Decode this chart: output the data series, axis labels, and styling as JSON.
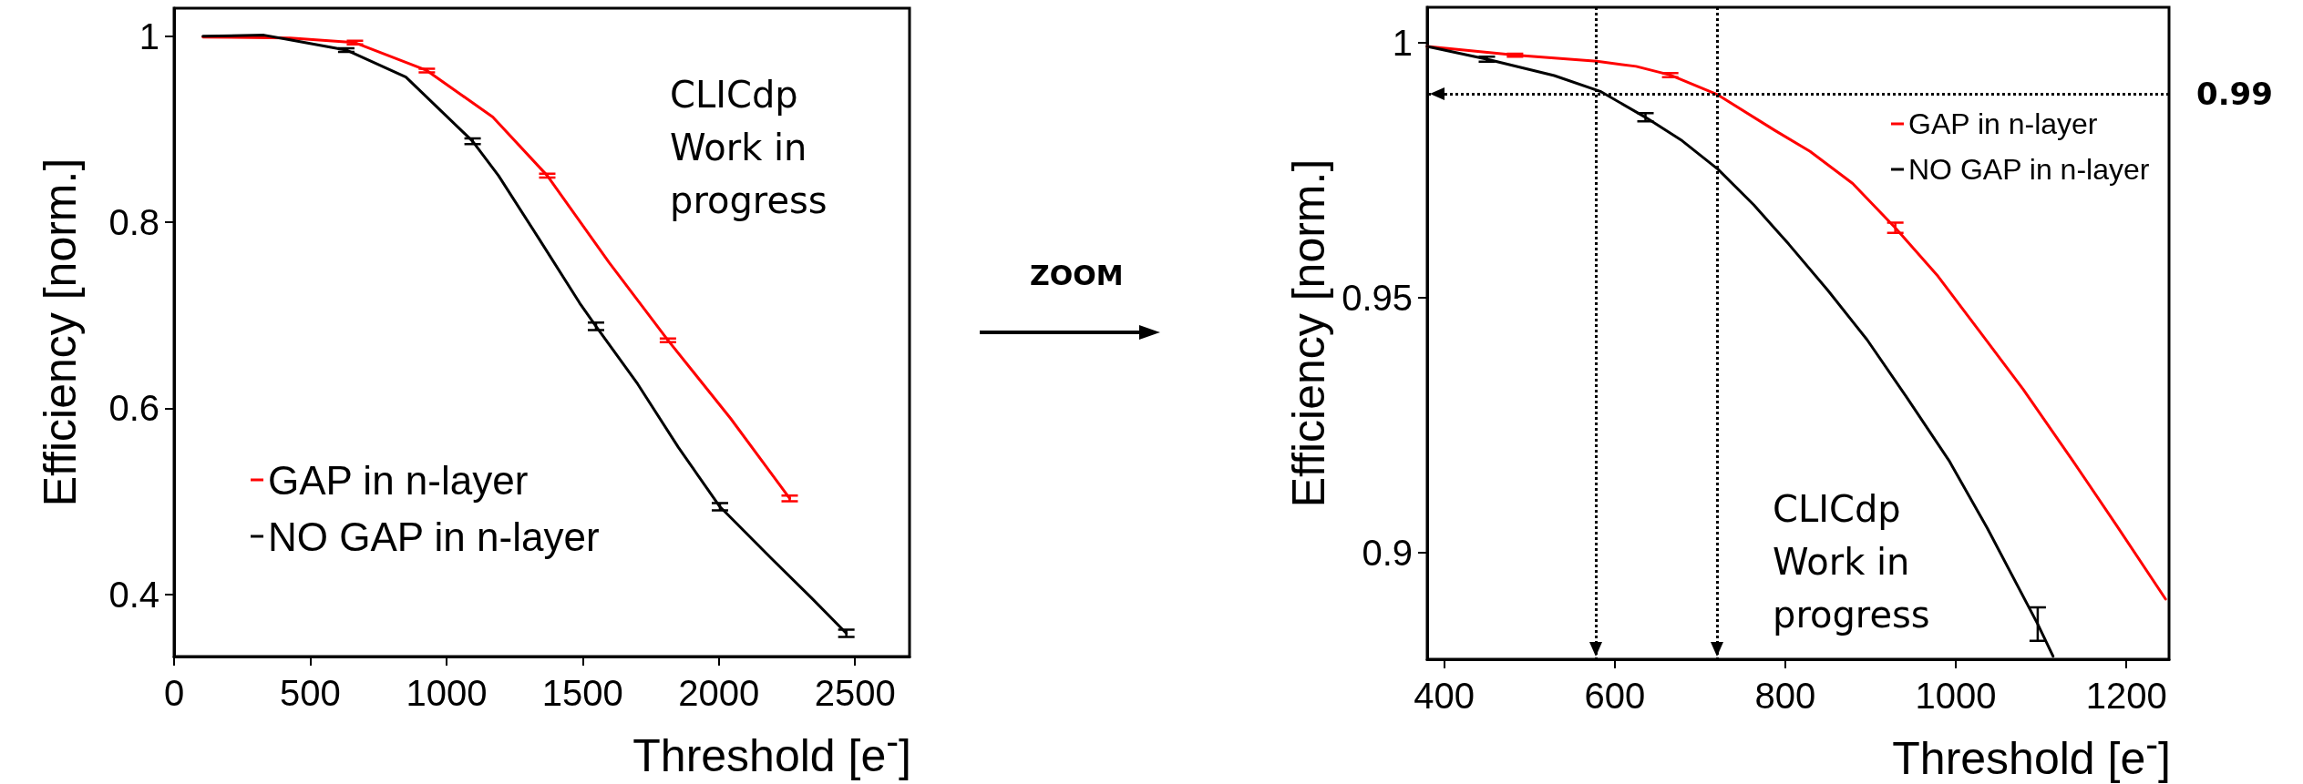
{
  "chart_data": [
    {
      "type": "line",
      "xlabel": "Threshold [e$^{-}$]",
      "ylabel": "Efficiency [norm.]",
      "xlim": [
        0,
        2700
      ],
      "xticks": [
        0,
        500,
        1000,
        1500,
        2000,
        2500
      ],
      "ylim": [
        0.333,
        1.03
      ],
      "yticks": [
        0.4,
        0.6,
        0.8,
        1
      ],
      "grid": false,
      "legend": "bottom left",
      "marker": "none",
      "line_style": "solid",
      "annotations": [
        "CLICdp\nWork in\nprogress"
      ],
      "series": [
        {
          "name": "GAP in n-layer",
          "color": "#ff0000",
          "x": [
            106,
            426,
            664,
            928,
            1170,
            1370,
            1596,
            1813,
            2043,
            2260
          ],
          "values": [
            0.999,
            0.998,
            0.993,
            0.963,
            0.913,
            0.85,
            0.757,
            0.673,
            0.589,
            0.503
          ],
          "errors": [
            null,
            null,
            0.002,
            0.002,
            null,
            0.002,
            null,
            0.002,
            null,
            0.003
          ]
        },
        {
          "name": "NO GAP in n-layer",
          "color": "#000000",
          "x": [
            106,
            330,
            426,
            632,
            851,
            1096,
            1191,
            1340,
            1489,
            1549,
            1702,
            1851,
            2004,
            2191,
            2340,
            2468
          ],
          "values": [
            1.0,
            1.001,
            0.996,
            0.985,
            0.956,
            0.887,
            0.85,
            0.782,
            0.713,
            0.688,
            0.626,
            0.558,
            0.494,
            0.439,
            0.396,
            0.358
          ],
          "errors": [
            null,
            null,
            null,
            0.002,
            null,
            0.003,
            null,
            null,
            null,
            0.004,
            null,
            null,
            0.004,
            null,
            null,
            0.004
          ]
        }
      ]
    },
    {
      "type": "line",
      "xlabel": "Threshold [e$^{-}$]",
      "ylabel": "Efficiency [norm.]",
      "xlim": [
        380,
        1250
      ],
      "xticks": [
        400,
        600,
        800,
        1000,
        1200
      ],
      "ylim": [
        0.879,
        1.007
      ],
      "yticks": [
        0.9,
        0.95,
        1
      ],
      "grid": false,
      "legend": "top right",
      "marker": "none",
      "line_style": "solid",
      "annotations": [
        "ZOOM",
        "CLICdp\nWork in\nprogress"
      ],
      "ref_lines": [
        {
          "axis": "y",
          "value": 0.99,
          "label": "0.99",
          "color": "#000000",
          "line_style": "dotted"
        },
        {
          "axis": "x",
          "value": 578,
          "label": null,
          "color": "#000000",
          "line_style": "dotted"
        },
        {
          "axis": "x",
          "value": 720,
          "label": null,
          "color": "#000000",
          "line_style": "dotted"
        }
      ],
      "series": [
        {
          "name": "GAP in n-layer",
          "color": "#ff0000",
          "x": [
            380,
            483,
            579,
            625,
            665,
            721,
            788,
            829,
            879,
            929,
            979,
            1029,
            1079,
            1137,
            1188,
            1246
          ],
          "values": [
            0.9993,
            0.9976,
            0.9964,
            0.9954,
            0.9937,
            0.9898,
            0.9828,
            0.9787,
            0.9724,
            0.9637,
            0.9542,
            0.9431,
            0.932,
            0.918,
            0.9054,
            0.8908
          ],
          "errors": [
            null,
            0.0003,
            null,
            null,
            0.0004,
            null,
            null,
            null,
            null,
            0.001,
            null,
            null,
            null,
            null,
            null,
            null
          ]
        },
        {
          "name": "NO GAP in n-layer",
          "color": "#000000",
          "x": [
            380,
            450,
            529,
            583,
            636,
            679,
            721,
            763,
            804,
            850,
            896,
            942,
            992,
            1037,
            1096,
            1114
          ],
          "values": [
            0.9993,
            0.9968,
            0.9936,
            0.9905,
            0.9854,
            0.9808,
            0.9752,
            0.9682,
            0.9605,
            0.9514,
            0.9417,
            0.9305,
            0.918,
            0.9047,
            0.8859,
            0.8796
          ],
          "errors": [
            null,
            0.0005,
            null,
            null,
            0.0008,
            null,
            null,
            null,
            null,
            null,
            null,
            null,
            null,
            null,
            0.0033,
            null
          ]
        }
      ]
    }
  ]
}
